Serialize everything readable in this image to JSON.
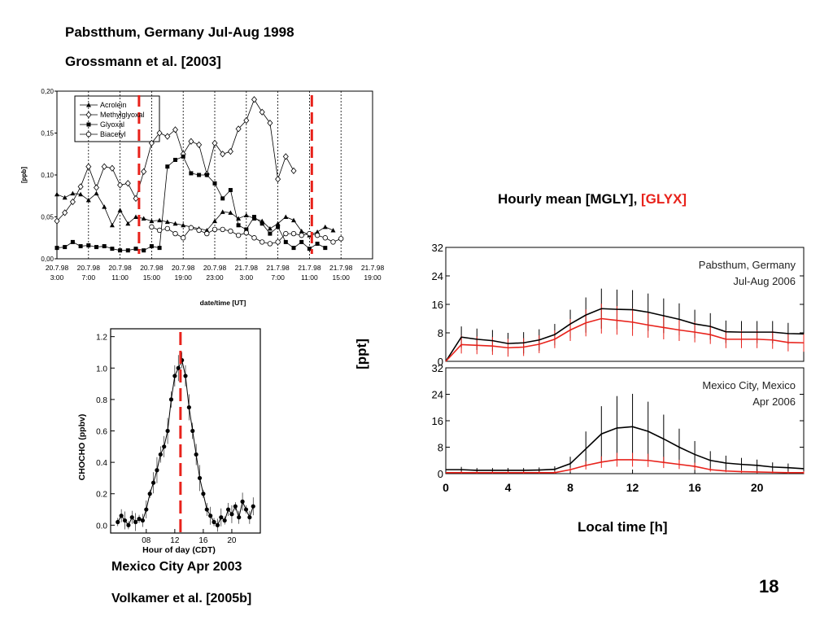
{
  "slide": {
    "top_title": "Pabstthum, Germany  Jul-Aug 1998",
    "top_citation": "Grossmann et al. [2003]",
    "right_heading_black": "Hourly mean [MGLY], ",
    "right_heading_red": "[GLYX]",
    "right_ylabel": "[ppt]",
    "right_xlabel": "Local time [h]",
    "bottom_title": "Mexico City  Apr 2003",
    "bottom_citation": "Volkamer et al. [2005b]",
    "page_number": "18"
  },
  "colors": {
    "red": "#e8221b",
    "black": "#000000"
  },
  "chart_data": [
    {
      "type": "line",
      "xlabel": "date/time [UT]",
      "ylabel": "[ppb]",
      "ylim": [
        0,
        0.2
      ],
      "yticks": [
        "0,00",
        "0,05",
        "0,10",
        "0,15",
        "0,20"
      ],
      "xticks": [
        [
          "20.7.98",
          "3:00"
        ],
        [
          "20.7.98",
          "7:00"
        ],
        [
          "20.7.98",
          "11:00"
        ],
        [
          "20.7.98",
          "15:00"
        ],
        [
          "20.7.98",
          "19:00"
        ],
        [
          "20.7.98",
          "23:00"
        ],
        [
          "21.7.98",
          "3:00"
        ],
        [
          "21.7.98",
          "7:00"
        ],
        [
          "21.7.98",
          "11:00"
        ],
        [
          "21.7.98",
          "15:00"
        ],
        [
          "21.7.98",
          "19:00"
        ]
      ],
      "legend_position": "top-left",
      "series": [
        {
          "name": "Acrolein",
          "marker": "triangle",
          "x": [
            0,
            1,
            2,
            3,
            4,
            5,
            6,
            7,
            8,
            9,
            10,
            11,
            12,
            13,
            14,
            15,
            16,
            17,
            18,
            19,
            20,
            21,
            22,
            23,
            24,
            25,
            26,
            27,
            28,
            29,
            30,
            31,
            32,
            33,
            34,
            35
          ],
          "y": [
            0.077,
            0.073,
            0.078,
            0.077,
            0.07,
            0.078,
            0.062,
            0.04,
            0.058,
            0.042,
            0.05,
            0.048,
            0.045,
            0.046,
            0.044,
            0.042,
            0.04,
            0.038,
            0.036,
            0.034,
            0.045,
            0.056,
            0.055,
            0.048,
            0.052,
            0.048,
            0.045,
            0.036,
            0.042,
            0.05,
            0.046,
            0.033,
            0.028,
            0.032,
            0.038,
            0.034
          ]
        },
        {
          "name": "Methylglyoxal",
          "marker": "diamond-open",
          "x": [
            0,
            1,
            2,
            3,
            4,
            5,
            6,
            7,
            8,
            9,
            10,
            11,
            12,
            13,
            14,
            15,
            16,
            17,
            18,
            19,
            20,
            21,
            22,
            23,
            24,
            25,
            26,
            27,
            28,
            29,
            30
          ],
          "y": [
            0.045,
            0.055,
            0.068,
            0.086,
            0.11,
            0.085,
            0.11,
            0.108,
            0.088,
            0.09,
            0.072,
            0.104,
            0.138,
            0.15,
            0.146,
            0.154,
            0.125,
            0.14,
            0.136,
            0.101,
            0.138,
            0.125,
            0.128,
            0.155,
            0.165,
            0.19,
            0.175,
            0.162,
            0.095,
            0.122,
            0.105
          ]
        },
        {
          "name": "Glyoxal",
          "marker": "square",
          "x": [
            0,
            1,
            2,
            3,
            4,
            5,
            6,
            7,
            8,
            9,
            10,
            11,
            12,
            13,
            14,
            15,
            16,
            17,
            18,
            19,
            20,
            21,
            22,
            23,
            24,
            25,
            26,
            27,
            28,
            29,
            30,
            31,
            32,
            33,
            34
          ],
          "y": [
            0.013,
            0.014,
            0.02,
            0.015,
            0.016,
            0.014,
            0.015,
            0.012,
            0.01,
            0.01,
            0.012,
            0.01,
            0.015,
            0.013,
            0.11,
            0.118,
            0.122,
            0.102,
            0.1,
            0.1,
            0.09,
            0.072,
            0.082,
            0.04,
            0.035,
            0.05,
            0.042,
            0.03,
            0.038,
            0.02,
            0.013,
            0.02,
            0.012,
            0.018,
            0.013
          ]
        },
        {
          "name": "Biacetyl",
          "marker": "circle-open",
          "x": [
            0,
            1,
            2,
            3,
            4,
            5,
            6,
            7,
            8,
            9,
            10,
            11,
            12,
            13,
            14,
            15,
            16,
            17,
            18,
            19,
            20,
            21,
            22,
            23,
            24
          ],
          "y": [
            0.038,
            0.034,
            0.036,
            0.03,
            0.025,
            0.037,
            0.034,
            0.03,
            0.035,
            0.035,
            0.033,
            0.028,
            0.031,
            0.025,
            0.02,
            0.018,
            0.02,
            0.03,
            0.03,
            0.028,
            0.03,
            0.028,
            0.025,
            0.02,
            0.024
          ]
        }
      ]
    },
    {
      "type": "line",
      "xlabel": "Hour of day (CDT)",
      "ylabel": "CHOCHO (ppbv)",
      "ylim": [
        -0.05,
        1.25
      ],
      "yticks": [
        "0.0",
        "0.2",
        "0.4",
        "0.6",
        "0.8",
        "1.0",
        "1.2"
      ],
      "xticks": [
        "08",
        "12",
        "16",
        "20"
      ],
      "series": [
        {
          "name": "",
          "x": [
            4,
            4.5,
            5,
            5.5,
            6,
            6.5,
            7,
            7.5,
            8,
            8.5,
            9,
            9.5,
            10,
            10.5,
            11,
            11.5,
            12,
            12.5,
            13,
            13.5,
            14,
            14.5,
            15,
            15.5,
            16,
            16.5,
            17,
            17.5,
            18,
            18.5,
            19,
            19.5,
            20,
            20.5,
            21,
            21.5,
            22,
            22.5,
            23
          ],
          "y": [
            0.02,
            0.06,
            0.03,
            0.0,
            0.05,
            0.02,
            0.04,
            0.03,
            0.1,
            0.2,
            0.27,
            0.35,
            0.45,
            0.5,
            0.6,
            0.8,
            0.95,
            1.0,
            1.05,
            0.95,
            0.75,
            0.6,
            0.45,
            0.3,
            0.2,
            0.1,
            0.06,
            0.02,
            0.0,
            0.05,
            0.03,
            0.1,
            0.07,
            0.12,
            0.05,
            0.15,
            0.1,
            0.05,
            0.12
          ]
        }
      ]
    },
    {
      "type": "line",
      "title": "Pabsthum, Germany",
      "subtitle": "Jul-Aug 2006",
      "ylim": [
        0,
        32
      ],
      "yticks": [
        "0",
        "8",
        "16",
        "24",
        "32"
      ],
      "series": [
        {
          "name": "MGLY",
          "color": "#000000",
          "x": [
            0,
            1,
            2,
            3,
            4,
            5,
            6,
            7,
            8,
            9,
            10,
            11,
            12,
            13,
            14,
            15,
            16,
            17,
            18,
            19,
            20,
            21,
            22,
            23
          ],
          "y": [
            0,
            6.8,
            6.2,
            5.8,
            5.0,
            5.2,
            6.0,
            7.5,
            10.5,
            13.0,
            14.8,
            14.6,
            14.5,
            13.8,
            12.8,
            11.8,
            10.5,
            9.8,
            8.3,
            8.2,
            8.2,
            8.2,
            7.8,
            7.7
          ]
        },
        {
          "name": "GLYX",
          "color": "#e8221b",
          "x": [
            0,
            1,
            2,
            3,
            4,
            5,
            6,
            7,
            8,
            9,
            10,
            11,
            12,
            13,
            14,
            15,
            16,
            17,
            18,
            19,
            20,
            21,
            22,
            23
          ],
          "y": [
            0,
            4.7,
            4.5,
            4.3,
            3.8,
            4.0,
            4.8,
            6.2,
            8.8,
            10.8,
            12.0,
            11.5,
            11.0,
            10.2,
            9.5,
            8.8,
            8.2,
            7.5,
            6.2,
            6.2,
            6.2,
            6.0,
            5.3,
            5.2
          ]
        }
      ]
    },
    {
      "type": "line",
      "title": "Mexico City, Mexico",
      "subtitle": "Apr 2006",
      "xlabel": "Local time [h]",
      "ylim": [
        0,
        32
      ],
      "yticks": [
        "0",
        "8",
        "16",
        "24",
        "32"
      ],
      "xticks": [
        "0",
        "4",
        "8",
        "12",
        "16",
        "20"
      ],
      "series": [
        {
          "name": "MGLY",
          "color": "#000000",
          "x": [
            0,
            1,
            2,
            3,
            4,
            5,
            6,
            7,
            8,
            9,
            10,
            11,
            12,
            13,
            14,
            15,
            16,
            17,
            18,
            19,
            20,
            21,
            22,
            23
          ],
          "y": [
            1.2,
            1.2,
            1.0,
            1.0,
            1.0,
            1.0,
            1.1,
            1.3,
            3.0,
            7.5,
            12.0,
            13.8,
            14.2,
            12.8,
            10.5,
            8.0,
            5.8,
            4.0,
            3.2,
            2.8,
            2.5,
            2.0,
            1.8,
            1.5
          ]
        },
        {
          "name": "GLYX",
          "color": "#e8221b",
          "x": [
            0,
            1,
            2,
            3,
            4,
            5,
            6,
            7,
            8,
            9,
            10,
            11,
            12,
            13,
            14,
            15,
            16,
            17,
            18,
            19,
            20,
            21,
            22,
            23
          ],
          "y": [
            0.3,
            0.3,
            0.3,
            0.3,
            0.3,
            0.3,
            0.3,
            0.3,
            1.2,
            2.5,
            3.5,
            4.2,
            4.2,
            4.0,
            3.4,
            2.8,
            2.2,
            1.2,
            0.8,
            0.6,
            0.5,
            0.4,
            0.3,
            0.3
          ]
        }
      ]
    }
  ]
}
